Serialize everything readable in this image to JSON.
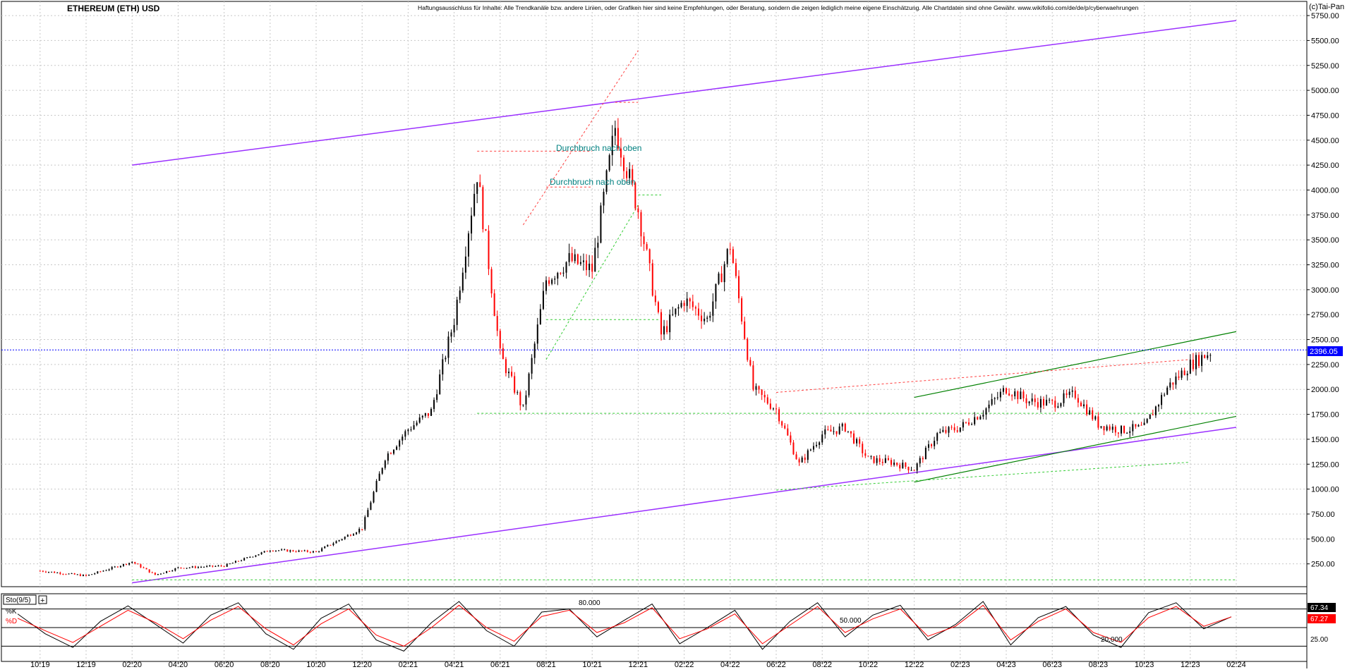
{
  "header": {
    "title": "ETHEREUM (ETH) USD",
    "disclaimer": "Haftungsausschluss für Inhalte: Alle Trendkanäle bzw. andere Linien, oder Grafiken hier sind keine Empfehlungen, oder Beratung, sondern die zeigen lediglich meine eigene Einschätzung. Alle Chartdaten sind ohne Gewähr.  www.wikifolio.com/de/de/p/cyberwaehrungen",
    "copyright": "(c)Tai-Pan"
  },
  "colors": {
    "candle_up": "#000000",
    "candle_down": "#ff0000",
    "purple_channel": "#9b30ff",
    "green_channel": "#008000",
    "green_dashed": "#33cc33",
    "red_dashed": "#ff4040",
    "last_price_box": "#0000ff",
    "pct_k_box": "#000000",
    "pct_d_box": "#ff0000",
    "annotation": "#008080"
  },
  "chart_data": [
    {
      "type": "line",
      "title": "ETHEREUM (ETH) USD",
      "ylim": [
        0,
        5800
      ],
      "y_ticks": [
        "250.00",
        "500.00",
        "750.00",
        "1000.00",
        "1250.00",
        "1500.00",
        "1750.00",
        "2000.00",
        "2250.00",
        "2500.00",
        "2750.00",
        "3000.00",
        "3250.00",
        "3500.00",
        "3750.00",
        "4000.00",
        "4250.00",
        "4500.00",
        "4750.00",
        "5000.00",
        "5250.00",
        "5500.00",
        "5750.00"
      ],
      "x_ticks": [
        "10.19",
        "12.19",
        "02.20",
        "04.20",
        "06.20",
        "08.20",
        "10.20",
        "12.20",
        "02.21",
        "04.21",
        "06.21",
        "08.21",
        "10.21",
        "12.21",
        "02.22",
        "04.22",
        "06.22",
        "08.22",
        "10.22",
        "12.22",
        "02.23",
        "04.23",
        "06.23",
        "08.23",
        "10.23",
        "12.23",
        "02.24"
      ],
      "last_price": "2396.05",
      "annotations": [
        "Durchbruch nach oben",
        "Durchbruch nach oben"
      ],
      "series": [
        {
          "x": [
            "10.19",
            "12.19",
            "02.20",
            "03.20",
            "04.20",
            "06.20",
            "08.20",
            "10.20",
            "12.20",
            "01.21",
            "02.21",
            "03.21",
            "04.21",
            "05.21",
            "06.21",
            "07.21",
            "08.21",
            "09.21",
            "10.21",
            "11.21",
            "12.21",
            "01.22",
            "02.22",
            "03.22",
            "04.22",
            "05.22",
            "06.22",
            "07.22",
            "08.22",
            "09.22",
            "10.22",
            "11.22",
            "12.22",
            "01.23",
            "02.23",
            "03.23",
            "04.23",
            "05.23",
            "06.23",
            "07.23",
            "08.23",
            "09.23",
            "10.23",
            "11.23",
            "12.23",
            "01.24"
          ],
          "values": [
            180,
            130,
            270,
            140,
            210,
            230,
            390,
            370,
            610,
            1320,
            1600,
            1780,
            2700,
            4170,
            2350,
            1800,
            3100,
            3300,
            3200,
            4630,
            3800,
            2550,
            2900,
            2700,
            3450,
            2000,
            1800,
            1250,
            1550,
            1620,
            1300,
            1270,
            1200,
            1550,
            1620,
            1780,
            2010,
            1880,
            1860,
            1950,
            1650,
            1590,
            1620,
            2020,
            2250,
            2396
          ]
        }
      ]
    },
    {
      "type": "line",
      "title": "Sto(9/5)",
      "ylim": [
        0,
        100
      ],
      "y_ticks": [
        "25.00"
      ],
      "levels": [
        "80.000",
        "50.000",
        "20.000"
      ],
      "pct_k_label": "%K",
      "pct_d_label": "%D",
      "pct_k_last": "67.34",
      "pct_d_last": "67.27",
      "series": [
        {
          "name": "%K",
          "values": [
            72,
            40,
            18,
            60,
            85,
            55,
            25,
            70,
            90,
            40,
            15,
            65,
            88,
            30,
            12,
            58,
            92,
            45,
            20,
            75,
            80,
            35,
            62,
            88,
            24,
            50,
            78,
            15,
            60,
            90,
            35,
            70,
            86,
            30,
            55,
            92,
            22,
            66,
            84,
            38,
            18,
            74,
            90,
            48,
            67.34
          ]
        },
        {
          "name": "%D",
          "values": [
            65,
            45,
            26,
            52,
            78,
            58,
            32,
            62,
            84,
            48,
            22,
            56,
            80,
            38,
            20,
            50,
            86,
            50,
            28,
            68,
            78,
            42,
            58,
            82,
            32,
            48,
            72,
            24,
            54,
            84,
            42,
            64,
            80,
            36,
            52,
            86,
            30,
            60,
            80,
            42,
            26,
            66,
            84,
            52,
            67.27
          ]
        }
      ]
    }
  ]
}
